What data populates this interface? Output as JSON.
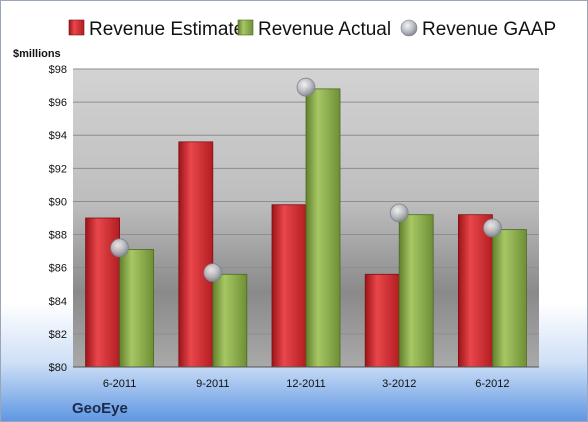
{
  "chart_data": {
    "type": "bar",
    "company": "GeoEye",
    "ylabel": "$millions",
    "ylim": [
      80,
      98
    ],
    "ytick_step": 2,
    "ytick_format": "$",
    "grid": true,
    "legend_position": "top",
    "categories": [
      "6-2011",
      "9-2011",
      "12-2011",
      "3-2012",
      "6-2012"
    ],
    "series": [
      {
        "name": "Revenue Estimate",
        "kind": "bar",
        "color": "#d42a2e",
        "values": [
          89.0,
          93.6,
          89.8,
          85.6,
          89.2
        ]
      },
      {
        "name": "Revenue Actual",
        "kind": "bar",
        "color": "#8fb04a",
        "values": [
          87.1,
          85.6,
          96.8,
          89.2,
          88.3
        ]
      },
      {
        "name": "Revenue GAAP",
        "kind": "marker",
        "color": "#b8bcc4",
        "values": [
          87.2,
          85.7,
          96.9,
          89.3,
          88.4
        ]
      }
    ]
  }
}
